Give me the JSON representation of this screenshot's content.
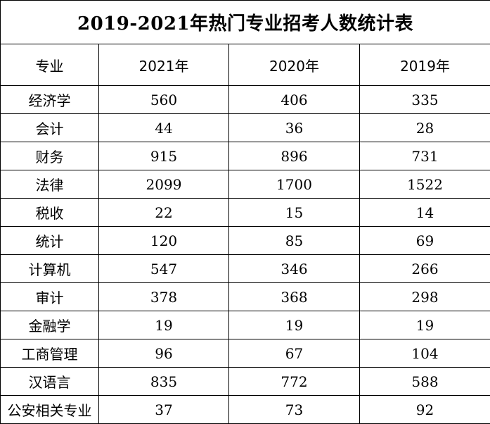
{
  "title": "2019-2021年热门专业招考人数统计表",
  "headers": [
    "专业",
    "2021年",
    "2020年",
    "2019年"
  ],
  "rows": [
    {
      "major": "经济学",
      "y2021": "560",
      "y2020": "406",
      "y2019": "335"
    },
    {
      "major": "会计",
      "y2021": "44",
      "y2020": "36",
      "y2019": "28"
    },
    {
      "major": "财务",
      "y2021": "915",
      "y2020": "896",
      "y2019": "731"
    },
    {
      "major": "法律",
      "y2021": "2099",
      "y2020": "1700",
      "y2019": "1522"
    },
    {
      "major": "税收",
      "y2021": "22",
      "y2020": "15",
      "y2019": "14"
    },
    {
      "major": "统计",
      "y2021": "120",
      "y2020": "85",
      "y2019": "69"
    },
    {
      "major": "计算机",
      "y2021": "547",
      "y2020": "346",
      "y2019": "266"
    },
    {
      "major": "审计",
      "y2021": "378",
      "y2020": "368",
      "y2019": "298"
    },
    {
      "major": "金融学",
      "y2021": "19",
      "y2020": "19",
      "y2019": "19"
    },
    {
      "major": "工商管理",
      "y2021": "96",
      "y2020": "67",
      "y2019": "104"
    },
    {
      "major": "汉语言",
      "y2021": "835",
      "y2020": "772",
      "y2019": "588"
    },
    {
      "major": "公安相关专业",
      "y2021": "37",
      "y2020": "73",
      "y2019": "92"
    }
  ]
}
